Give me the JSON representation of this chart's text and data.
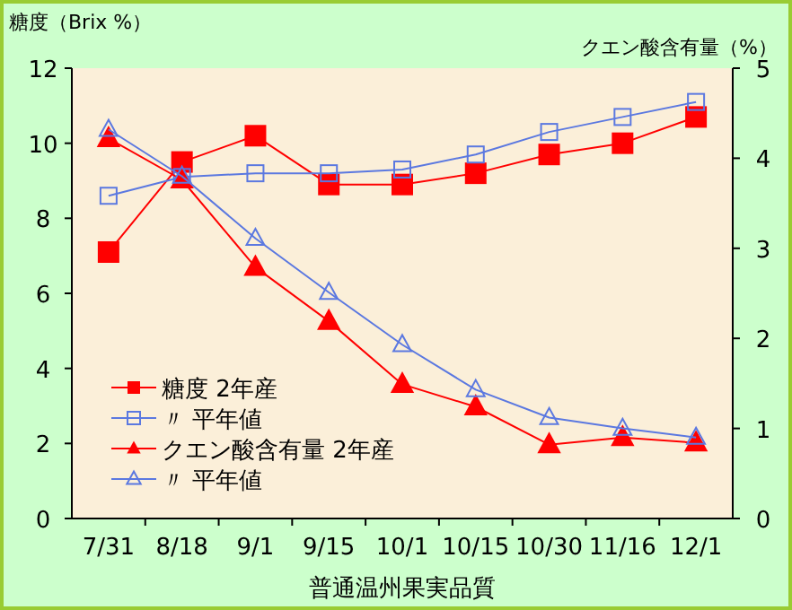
{
  "chart_data": {
    "type": "line",
    "xlabel": "普通温州果実品質",
    "ylabel": "糖度（Brix %）",
    "y2label": "クエン酸含有量（%）",
    "categories": [
      "7/31",
      "8/18",
      "9/1",
      "9/15",
      "10/1",
      "10/15",
      "10/30",
      "11/16",
      "12/1"
    ],
    "series": [
      {
        "name": "糖度  2年産",
        "color": "#ff0000",
        "marker": "square",
        "values": [
          7.1,
          9.5,
          10.2,
          8.9,
          8.9,
          9.2,
          9.7,
          10.0,
          10.7
        ]
      },
      {
        "name": "〃  平年値",
        "color": "#5b78e0",
        "marker": "square",
        "values": [
          8.6,
          9.1,
          9.2,
          9.2,
          9.3,
          9.7,
          10.3,
          10.7,
          11.1
        ]
      },
      {
        "name": "クエン酸含有量  2年産",
        "color": "#ff0000",
        "marker": "triangle",
        "axis": "y2",
        "values": [
          4.22,
          3.76,
          2.79,
          2.19,
          1.49,
          1.24,
          0.82,
          0.9,
          0.84
        ]
      },
      {
        "name": "〃  平年値",
        "color": "#5b78e0",
        "marker": "triangle",
        "axis": "y2",
        "values": [
          4.32,
          3.8,
          3.11,
          2.51,
          1.93,
          1.43,
          1.12,
          1.0,
          0.9
        ]
      }
    ],
    "ylim": [
      0,
      12
    ],
    "yticks": [
      0,
      2,
      4,
      6,
      8,
      10,
      12
    ],
    "y2lim": [
      0,
      5
    ],
    "y2ticks": [
      0,
      1,
      2,
      3,
      4,
      5
    ],
    "grid": false,
    "legend": "bottom left"
  }
}
